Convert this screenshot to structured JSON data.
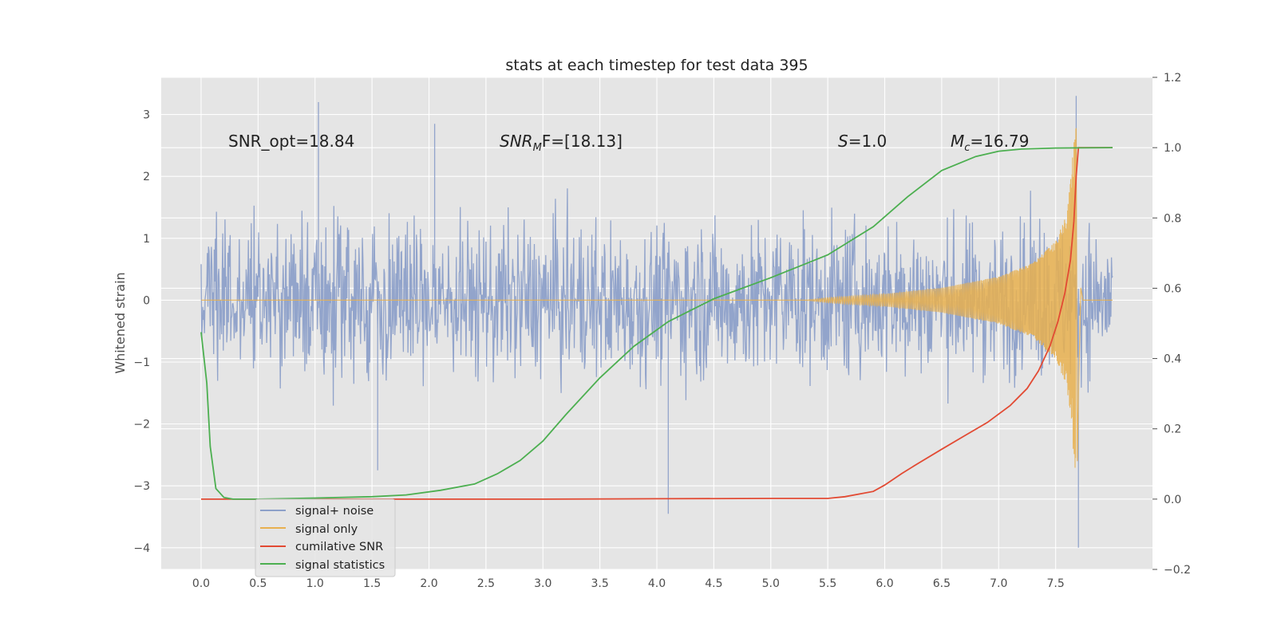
{
  "chart_data": {
    "type": "line",
    "title": "stats at each timestep for test data 395",
    "ylabel": "Whitened strain",
    "xlim": [
      -0.35,
      8.35
    ],
    "ylim": [
      -4.35,
      3.6
    ],
    "y2lim": [
      -0.2,
      1.2
    ],
    "grid": true,
    "xticks": [
      0.0,
      0.5,
      1.0,
      1.5,
      2.0,
      2.5,
      3.0,
      3.5,
      4.0,
      4.5,
      5.0,
      5.5,
      6.0,
      6.5,
      7.0,
      7.5
    ],
    "xtick_labels": [
      "0.0",
      "0.5",
      "1.0",
      "1.5",
      "2.0",
      "2.5",
      "3.0",
      "3.5",
      "4.0",
      "4.5",
      "5.0",
      "5.5",
      "6.0",
      "6.5",
      "7.0",
      "7.5"
    ],
    "yticks": [
      3,
      2,
      1,
      0,
      -1,
      -2,
      -3,
      -4
    ],
    "ytick_labels": [
      "3",
      "2",
      "1",
      "0",
      "−1",
      "−2",
      "−3",
      "−4"
    ],
    "y2ticks": [
      1.2,
      1.0,
      0.8,
      0.6,
      0.4,
      0.2,
      0.0,
      -0.2
    ],
    "y2tick_labels": [
      "1.2",
      "1.0",
      "0.8",
      "0.6",
      "0.4",
      "0.2",
      "0.0",
      "−0.2"
    ],
    "annotations": {
      "snr_opt": "SNR_opt=18.84",
      "snr_mf_main": "SNR",
      "snr_mf_sub": "M",
      "snr_mf_rest": "F=[18.13]",
      "s_sym": "S",
      "s_val": "=1.0",
      "mc_sym": "M",
      "mc_sub": "c",
      "mc_val": "=16.79"
    },
    "legend": {
      "placement": "lower-left",
      "entries": [
        "signal+ noise",
        "signal only",
        "cumilative SNR",
        "signal statistics"
      ]
    },
    "series": [
      {
        "name": "signal+ noise",
        "color": "#8da0c9",
        "axis": "left",
        "x_range": [
          0.0,
          8.0
        ],
        "y_typical_range": [
          -2.2,
          2.4
        ],
        "peaks": [
          [
            1.03,
            3.2
          ],
          [
            7.68,
            3.3
          ],
          [
            2.05,
            2.85
          ],
          [
            7.7,
            -4.0
          ],
          [
            4.1,
            -3.45
          ],
          [
            1.55,
            -2.75
          ]
        ]
      },
      {
        "name": "signal only",
        "color": "#e8b04f",
        "axis": "left",
        "chirp_start": 5.3,
        "merger": 7.68,
        "peak_amplitude": 2.9,
        "envelope": [
          [
            5.5,
            0.04
          ],
          [
            6.0,
            0.1
          ],
          [
            6.5,
            0.2
          ],
          [
            7.0,
            0.38
          ],
          [
            7.3,
            0.6
          ],
          [
            7.5,
            0.95
          ],
          [
            7.6,
            1.4
          ],
          [
            7.68,
            2.9
          ]
        ]
      },
      {
        "name": "cumilative SNR",
        "color": "#e24a33",
        "axis": "right",
        "x": [
          0.0,
          1.0,
          2.0,
          3.0,
          4.0,
          5.0,
          5.5,
          5.65,
          5.9,
          6.0,
          6.15,
          6.3,
          6.5,
          6.7,
          6.9,
          7.1,
          7.25,
          7.35,
          7.45,
          7.52,
          7.58,
          7.63,
          7.66,
          7.68,
          7.7,
          8.0
        ],
        "values": [
          0.0,
          0.0,
          0.0,
          0.0,
          0.001,
          0.002,
          0.002,
          0.007,
          0.022,
          0.04,
          0.073,
          0.103,
          0.142,
          0.18,
          0.218,
          0.266,
          0.315,
          0.365,
          0.435,
          0.505,
          0.585,
          0.68,
          0.79,
          0.92,
          1.0,
          1.0
        ]
      },
      {
        "name": "signal statistics",
        "color": "#4caf50",
        "axis": "right",
        "x": [
          0.0,
          0.05,
          0.08,
          0.13,
          0.2,
          0.28,
          0.5,
          1.0,
          1.5,
          1.8,
          2.1,
          2.4,
          2.6,
          2.8,
          3.0,
          3.2,
          3.5,
          3.8,
          4.1,
          4.5,
          5.0,
          5.5,
          5.9,
          6.2,
          6.5,
          6.8,
          7.0,
          7.2,
          7.5,
          8.0
        ],
        "values": [
          0.475,
          0.33,
          0.15,
          0.03,
          0.005,
          0.0,
          0.0,
          0.003,
          0.007,
          0.012,
          0.025,
          0.043,
          0.072,
          0.11,
          0.165,
          0.24,
          0.345,
          0.435,
          0.505,
          0.57,
          0.63,
          0.695,
          0.775,
          0.86,
          0.935,
          0.975,
          0.99,
          0.996,
          0.999,
          1.0
        ]
      }
    ]
  }
}
